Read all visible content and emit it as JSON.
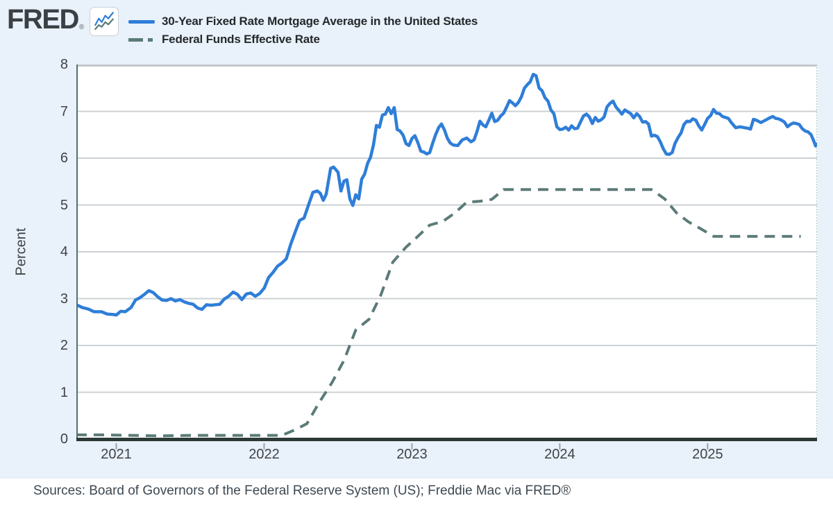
{
  "header": {
    "logo_text": "FRED",
    "registered_mark": "®",
    "logo_icon": "fred-sparkline-icon"
  },
  "legend": {
    "items": [
      {
        "label": "30-Year Fixed Rate Mortgage Average in the United States",
        "color": "#2f7ed8",
        "line_style": "solid"
      },
      {
        "label": "Federal Funds Effective Rate",
        "color": "#5b7b78",
        "line_style": "dashed"
      }
    ]
  },
  "footer": {
    "source_note": "Sources: Board of Governors of the Federal Reserve System (US); Freddie Mac via FRED®"
  },
  "colors": {
    "page_background": "#e9f1fa",
    "plot_background": "#ffffff",
    "gridline": "#ccd1d5",
    "top_border": "#c3c8cc",
    "axis_baseline": "#2b3a37",
    "left_border": "#50706b",
    "right_border_dotted": "#c3cbd0",
    "tick_mark": "#9ba2a7",
    "mortgage_line": "#2f7ed8",
    "fed_funds_line": "#5b7b78",
    "axis_text": "#3f4347"
  },
  "chart_data": {
    "type": "line",
    "title": "",
    "xlabel": "",
    "ylabel": "Percent",
    "ylim": [
      0,
      8
    ],
    "yticks": [
      0,
      1,
      2,
      3,
      4,
      5,
      6,
      7,
      8
    ],
    "xlim": [
      2020.73,
      2025.74
    ],
    "xticks": [
      2021,
      2022,
      2023,
      2024,
      2025
    ],
    "xtick_labels": [
      "2021",
      "2022",
      "2023",
      "2024",
      "2025"
    ],
    "grid": true,
    "legend_position": "top-left",
    "series": [
      {
        "key": "mortgage-rate-line",
        "name": "30-Year Fixed Rate Mortgage Average in the United States",
        "color": "#2f7ed8",
        "dash": "solid",
        "width": 4.5,
        "points": [
          [
            2020.73,
            2.87
          ],
          [
            2020.77,
            2.81
          ],
          [
            2020.81,
            2.78
          ],
          [
            2020.85,
            2.72
          ],
          [
            2020.9,
            2.72
          ],
          [
            2020.94,
            2.67
          ],
          [
            2020.98,
            2.66
          ],
          [
            2021.0,
            2.65
          ],
          [
            2021.03,
            2.73
          ],
          [
            2021.06,
            2.72
          ],
          [
            2021.1,
            2.81
          ],
          [
            2021.13,
            2.97
          ],
          [
            2021.16,
            3.02
          ],
          [
            2021.19,
            3.09
          ],
          [
            2021.22,
            3.17
          ],
          [
            2021.25,
            3.13
          ],
          [
            2021.28,
            3.04
          ],
          [
            2021.31,
            2.97
          ],
          [
            2021.34,
            2.96
          ],
          [
            2021.37,
            3.0
          ],
          [
            2021.4,
            2.95
          ],
          [
            2021.43,
            2.98
          ],
          [
            2021.46,
            2.93
          ],
          [
            2021.49,
            2.9
          ],
          [
            2021.52,
            2.88
          ],
          [
            2021.55,
            2.8
          ],
          [
            2021.58,
            2.77
          ],
          [
            2021.61,
            2.87
          ],
          [
            2021.64,
            2.86
          ],
          [
            2021.67,
            2.87
          ],
          [
            2021.7,
            2.88
          ],
          [
            2021.73,
            2.99
          ],
          [
            2021.76,
            3.05
          ],
          [
            2021.79,
            3.14
          ],
          [
            2021.82,
            3.09
          ],
          [
            2021.85,
            2.98
          ],
          [
            2021.88,
            3.1
          ],
          [
            2021.91,
            3.12
          ],
          [
            2021.94,
            3.05
          ],
          [
            2021.97,
            3.11
          ],
          [
            2022.0,
            3.22
          ],
          [
            2022.03,
            3.45
          ],
          [
            2022.06,
            3.56
          ],
          [
            2022.09,
            3.69
          ],
          [
            2022.12,
            3.76
          ],
          [
            2022.15,
            3.85
          ],
          [
            2022.18,
            4.16
          ],
          [
            2022.21,
            4.42
          ],
          [
            2022.24,
            4.67
          ],
          [
            2022.27,
            4.72
          ],
          [
            2022.3,
            5.0
          ],
          [
            2022.33,
            5.27
          ],
          [
            2022.36,
            5.3
          ],
          [
            2022.38,
            5.25
          ],
          [
            2022.4,
            5.1
          ],
          [
            2022.42,
            5.23
          ],
          [
            2022.45,
            5.78
          ],
          [
            2022.47,
            5.81
          ],
          [
            2022.5,
            5.7
          ],
          [
            2022.52,
            5.3
          ],
          [
            2022.54,
            5.51
          ],
          [
            2022.56,
            5.54
          ],
          [
            2022.58,
            5.13
          ],
          [
            2022.6,
            4.99
          ],
          [
            2022.62,
            5.22
          ],
          [
            2022.64,
            5.13
          ],
          [
            2022.66,
            5.55
          ],
          [
            2022.68,
            5.66
          ],
          [
            2022.7,
            5.89
          ],
          [
            2022.72,
            6.02
          ],
          [
            2022.74,
            6.29
          ],
          [
            2022.76,
            6.7
          ],
          [
            2022.78,
            6.66
          ],
          [
            2022.8,
            6.92
          ],
          [
            2022.82,
            6.94
          ],
          [
            2022.84,
            7.08
          ],
          [
            2022.86,
            6.95
          ],
          [
            2022.88,
            7.08
          ],
          [
            2022.9,
            6.61
          ],
          [
            2022.92,
            6.58
          ],
          [
            2022.94,
            6.49
          ],
          [
            2022.96,
            6.31
          ],
          [
            2022.98,
            6.27
          ],
          [
            2023.0,
            6.42
          ],
          [
            2023.02,
            6.48
          ],
          [
            2023.04,
            6.33
          ],
          [
            2023.06,
            6.15
          ],
          [
            2023.08,
            6.13
          ],
          [
            2023.1,
            6.09
          ],
          [
            2023.12,
            6.12
          ],
          [
            2023.14,
            6.32
          ],
          [
            2023.16,
            6.5
          ],
          [
            2023.18,
            6.65
          ],
          [
            2023.2,
            6.73
          ],
          [
            2023.22,
            6.6
          ],
          [
            2023.24,
            6.42
          ],
          [
            2023.26,
            6.32
          ],
          [
            2023.28,
            6.28
          ],
          [
            2023.31,
            6.27
          ],
          [
            2023.34,
            6.39
          ],
          [
            2023.37,
            6.43
          ],
          [
            2023.4,
            6.35
          ],
          [
            2023.42,
            6.39
          ],
          [
            2023.44,
            6.57
          ],
          [
            2023.46,
            6.79
          ],
          [
            2023.48,
            6.71
          ],
          [
            2023.5,
            6.67
          ],
          [
            2023.52,
            6.81
          ],
          [
            2023.54,
            6.96
          ],
          [
            2023.56,
            6.78
          ],
          [
            2023.58,
            6.81
          ],
          [
            2023.6,
            6.9
          ],
          [
            2023.62,
            6.96
          ],
          [
            2023.64,
            7.09
          ],
          [
            2023.66,
            7.23
          ],
          [
            2023.68,
            7.18
          ],
          [
            2023.7,
            7.12
          ],
          [
            2023.72,
            7.19
          ],
          [
            2023.74,
            7.31
          ],
          [
            2023.76,
            7.49
          ],
          [
            2023.78,
            7.57
          ],
          [
            2023.8,
            7.63
          ],
          [
            2023.82,
            7.79
          ],
          [
            2023.84,
            7.76
          ],
          [
            2023.86,
            7.5
          ],
          [
            2023.88,
            7.44
          ],
          [
            2023.9,
            7.29
          ],
          [
            2023.92,
            7.22
          ],
          [
            2023.94,
            7.03
          ],
          [
            2023.96,
            6.95
          ],
          [
            2023.98,
            6.67
          ],
          [
            2024.0,
            6.61
          ],
          [
            2024.02,
            6.62
          ],
          [
            2024.04,
            6.66
          ],
          [
            2024.06,
            6.6
          ],
          [
            2024.08,
            6.69
          ],
          [
            2024.1,
            6.63
          ],
          [
            2024.12,
            6.64
          ],
          [
            2024.14,
            6.77
          ],
          [
            2024.16,
            6.9
          ],
          [
            2024.18,
            6.94
          ],
          [
            2024.2,
            6.88
          ],
          [
            2024.22,
            6.74
          ],
          [
            2024.24,
            6.87
          ],
          [
            2024.26,
            6.79
          ],
          [
            2024.28,
            6.82
          ],
          [
            2024.3,
            6.88
          ],
          [
            2024.32,
            7.1
          ],
          [
            2024.34,
            7.17
          ],
          [
            2024.36,
            7.22
          ],
          [
            2024.38,
            7.09
          ],
          [
            2024.4,
            7.02
          ],
          [
            2024.42,
            6.94
          ],
          [
            2024.44,
            7.03
          ],
          [
            2024.46,
            6.99
          ],
          [
            2024.48,
            6.95
          ],
          [
            2024.5,
            6.86
          ],
          [
            2024.52,
            6.95
          ],
          [
            2024.54,
            6.89
          ],
          [
            2024.56,
            6.77
          ],
          [
            2024.58,
            6.78
          ],
          [
            2024.6,
            6.73
          ],
          [
            2024.62,
            6.47
          ],
          [
            2024.64,
            6.49
          ],
          [
            2024.66,
            6.46
          ],
          [
            2024.68,
            6.35
          ],
          [
            2024.7,
            6.2
          ],
          [
            2024.72,
            6.09
          ],
          [
            2024.74,
            6.08
          ],
          [
            2024.76,
            6.12
          ],
          [
            2024.78,
            6.32
          ],
          [
            2024.8,
            6.44
          ],
          [
            2024.82,
            6.54
          ],
          [
            2024.84,
            6.72
          ],
          [
            2024.86,
            6.79
          ],
          [
            2024.88,
            6.78
          ],
          [
            2024.9,
            6.84
          ],
          [
            2024.92,
            6.81
          ],
          [
            2024.94,
            6.69
          ],
          [
            2024.96,
            6.6
          ],
          [
            2024.98,
            6.72
          ],
          [
            2025.0,
            6.85
          ],
          [
            2025.02,
            6.91
          ],
          [
            2025.04,
            7.04
          ],
          [
            2025.06,
            6.96
          ],
          [
            2025.08,
            6.95
          ],
          [
            2025.1,
            6.89
          ],
          [
            2025.12,
            6.87
          ],
          [
            2025.14,
            6.85
          ],
          [
            2025.16,
            6.76
          ],
          [
            2025.19,
            6.65
          ],
          [
            2025.22,
            6.67
          ],
          [
            2025.25,
            6.65
          ],
          [
            2025.27,
            6.64
          ],
          [
            2025.29,
            6.62
          ],
          [
            2025.31,
            6.83
          ],
          [
            2025.33,
            6.81
          ],
          [
            2025.36,
            6.76
          ],
          [
            2025.39,
            6.81
          ],
          [
            2025.42,
            6.86
          ],
          [
            2025.44,
            6.89
          ],
          [
            2025.46,
            6.85
          ],
          [
            2025.48,
            6.84
          ],
          [
            2025.5,
            6.81
          ],
          [
            2025.52,
            6.77
          ],
          [
            2025.54,
            6.67
          ],
          [
            2025.56,
            6.72
          ],
          [
            2025.58,
            6.75
          ],
          [
            2025.6,
            6.74
          ],
          [
            2025.62,
            6.72
          ],
          [
            2025.64,
            6.63
          ],
          [
            2025.66,
            6.58
          ],
          [
            2025.68,
            6.56
          ],
          [
            2025.7,
            6.5
          ],
          [
            2025.72,
            6.35
          ],
          [
            2025.73,
            6.26
          ],
          [
            2025.74,
            6.3
          ]
        ]
      },
      {
        "key": "fed-funds-line",
        "name": "Federal Funds Effective Rate",
        "color": "#5b7b78",
        "dash": "dashed",
        "width": 4,
        "points": [
          [
            2020.73,
            0.09
          ],
          [
            2020.9,
            0.09
          ],
          [
            2021.1,
            0.08
          ],
          [
            2021.3,
            0.07
          ],
          [
            2021.5,
            0.08
          ],
          [
            2021.7,
            0.08
          ],
          [
            2021.9,
            0.08
          ],
          [
            2022.04,
            0.08
          ],
          [
            2022.12,
            0.08
          ],
          [
            2022.21,
            0.2
          ],
          [
            2022.29,
            0.33
          ],
          [
            2022.37,
            0.77
          ],
          [
            2022.46,
            1.21
          ],
          [
            2022.54,
            1.68
          ],
          [
            2022.62,
            2.33
          ],
          [
            2022.71,
            2.56
          ],
          [
            2022.79,
            3.08
          ],
          [
            2022.87,
            3.78
          ],
          [
            2022.96,
            4.1
          ],
          [
            2023.04,
            4.33
          ],
          [
            2023.12,
            4.57
          ],
          [
            2023.21,
            4.65
          ],
          [
            2023.29,
            4.83
          ],
          [
            2023.37,
            5.06
          ],
          [
            2023.46,
            5.08
          ],
          [
            2023.54,
            5.12
          ],
          [
            2023.62,
            5.33
          ],
          [
            2023.79,
            5.33
          ],
          [
            2024.0,
            5.33
          ],
          [
            2024.25,
            5.33
          ],
          [
            2024.5,
            5.33
          ],
          [
            2024.62,
            5.33
          ],
          [
            2024.71,
            5.13
          ],
          [
            2024.79,
            4.83
          ],
          [
            2024.87,
            4.64
          ],
          [
            2024.96,
            4.48
          ],
          [
            2025.04,
            4.33
          ],
          [
            2025.2,
            4.33
          ],
          [
            2025.4,
            4.33
          ],
          [
            2025.63,
            4.33
          ]
        ]
      }
    ]
  }
}
